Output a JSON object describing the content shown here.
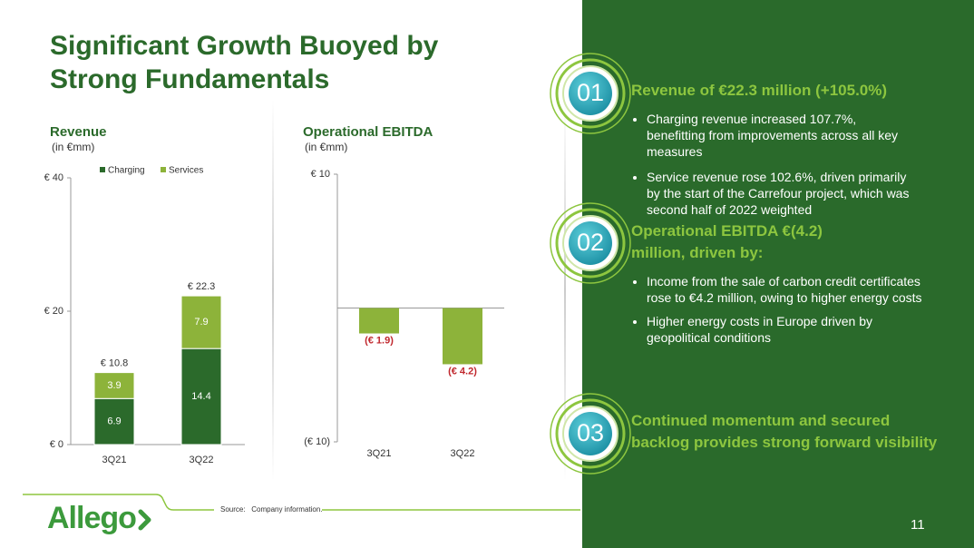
{
  "title": [
    "Significant Growth Buoyed by",
    "Strong Fundamentals"
  ],
  "chart_data": [
    {
      "type": "stacked_bar",
      "title": "Revenue",
      "subtitle": "(in €mm)",
      "categories": [
        "3Q21",
        "3Q22"
      ],
      "series": [
        {
          "name": "Charging",
          "color": "#2b6a2b",
          "values": [
            6.9,
            14.4
          ]
        },
        {
          "name": "Services",
          "color": "#8db33a",
          "values": [
            3.9,
            7.9
          ]
        }
      ],
      "totals": [
        10.8,
        22.3
      ],
      "total_labels": [
        "€ 10.8",
        "€ 22.3"
      ],
      "ylim": [
        0,
        40
      ],
      "yticks": [
        {
          "value": 0,
          "label": "€ 0"
        },
        {
          "value": 20,
          "label": "€ 20"
        },
        {
          "value": 40,
          "label": "€ 40"
        }
      ],
      "legend": "top"
    },
    {
      "type": "bar",
      "title": "Operational EBITDA",
      "subtitle": "(in €mm)",
      "categories": [
        "3Q21",
        "3Q22"
      ],
      "values": [
        -1.9,
        -4.2
      ],
      "value_labels": [
        "(€ 1.9)",
        "(€ 4.2)"
      ],
      "color": "#8db33a",
      "label_color": "#c0272d",
      "ylim": [
        -10,
        10
      ],
      "yticks": [
        {
          "value": -10,
          "label": "(€ 10)"
        },
        {
          "value": 10,
          "label": "€ 10"
        }
      ]
    }
  ],
  "highlights": [
    {
      "number": "01",
      "heading": "Revenue of €22.3 million (+105.0%)",
      "bullets": [
        "Charging revenue increased 107.7%, benefitting from improvements across all key measures",
        "Service revenue rose 102.6%, driven primarily by the start of the Carrefour project, which was second half of 2022 weighted"
      ]
    },
    {
      "number": "02",
      "heading": "Operational EBITDA €(4.2) million, driven by:",
      "bullets": [
        "Income from the sale of carbon credit certificates rose to €4.2 million, owing to higher energy costs",
        "Higher energy costs in Europe driven by geopolitical conditions"
      ]
    },
    {
      "number": "03",
      "heading": "Continued momentum and secured backlog provides strong forward visibility",
      "bullets": []
    }
  ],
  "source_label": "Source:",
  "source": "Company information.",
  "logo": "Allego",
  "page_number": "11"
}
